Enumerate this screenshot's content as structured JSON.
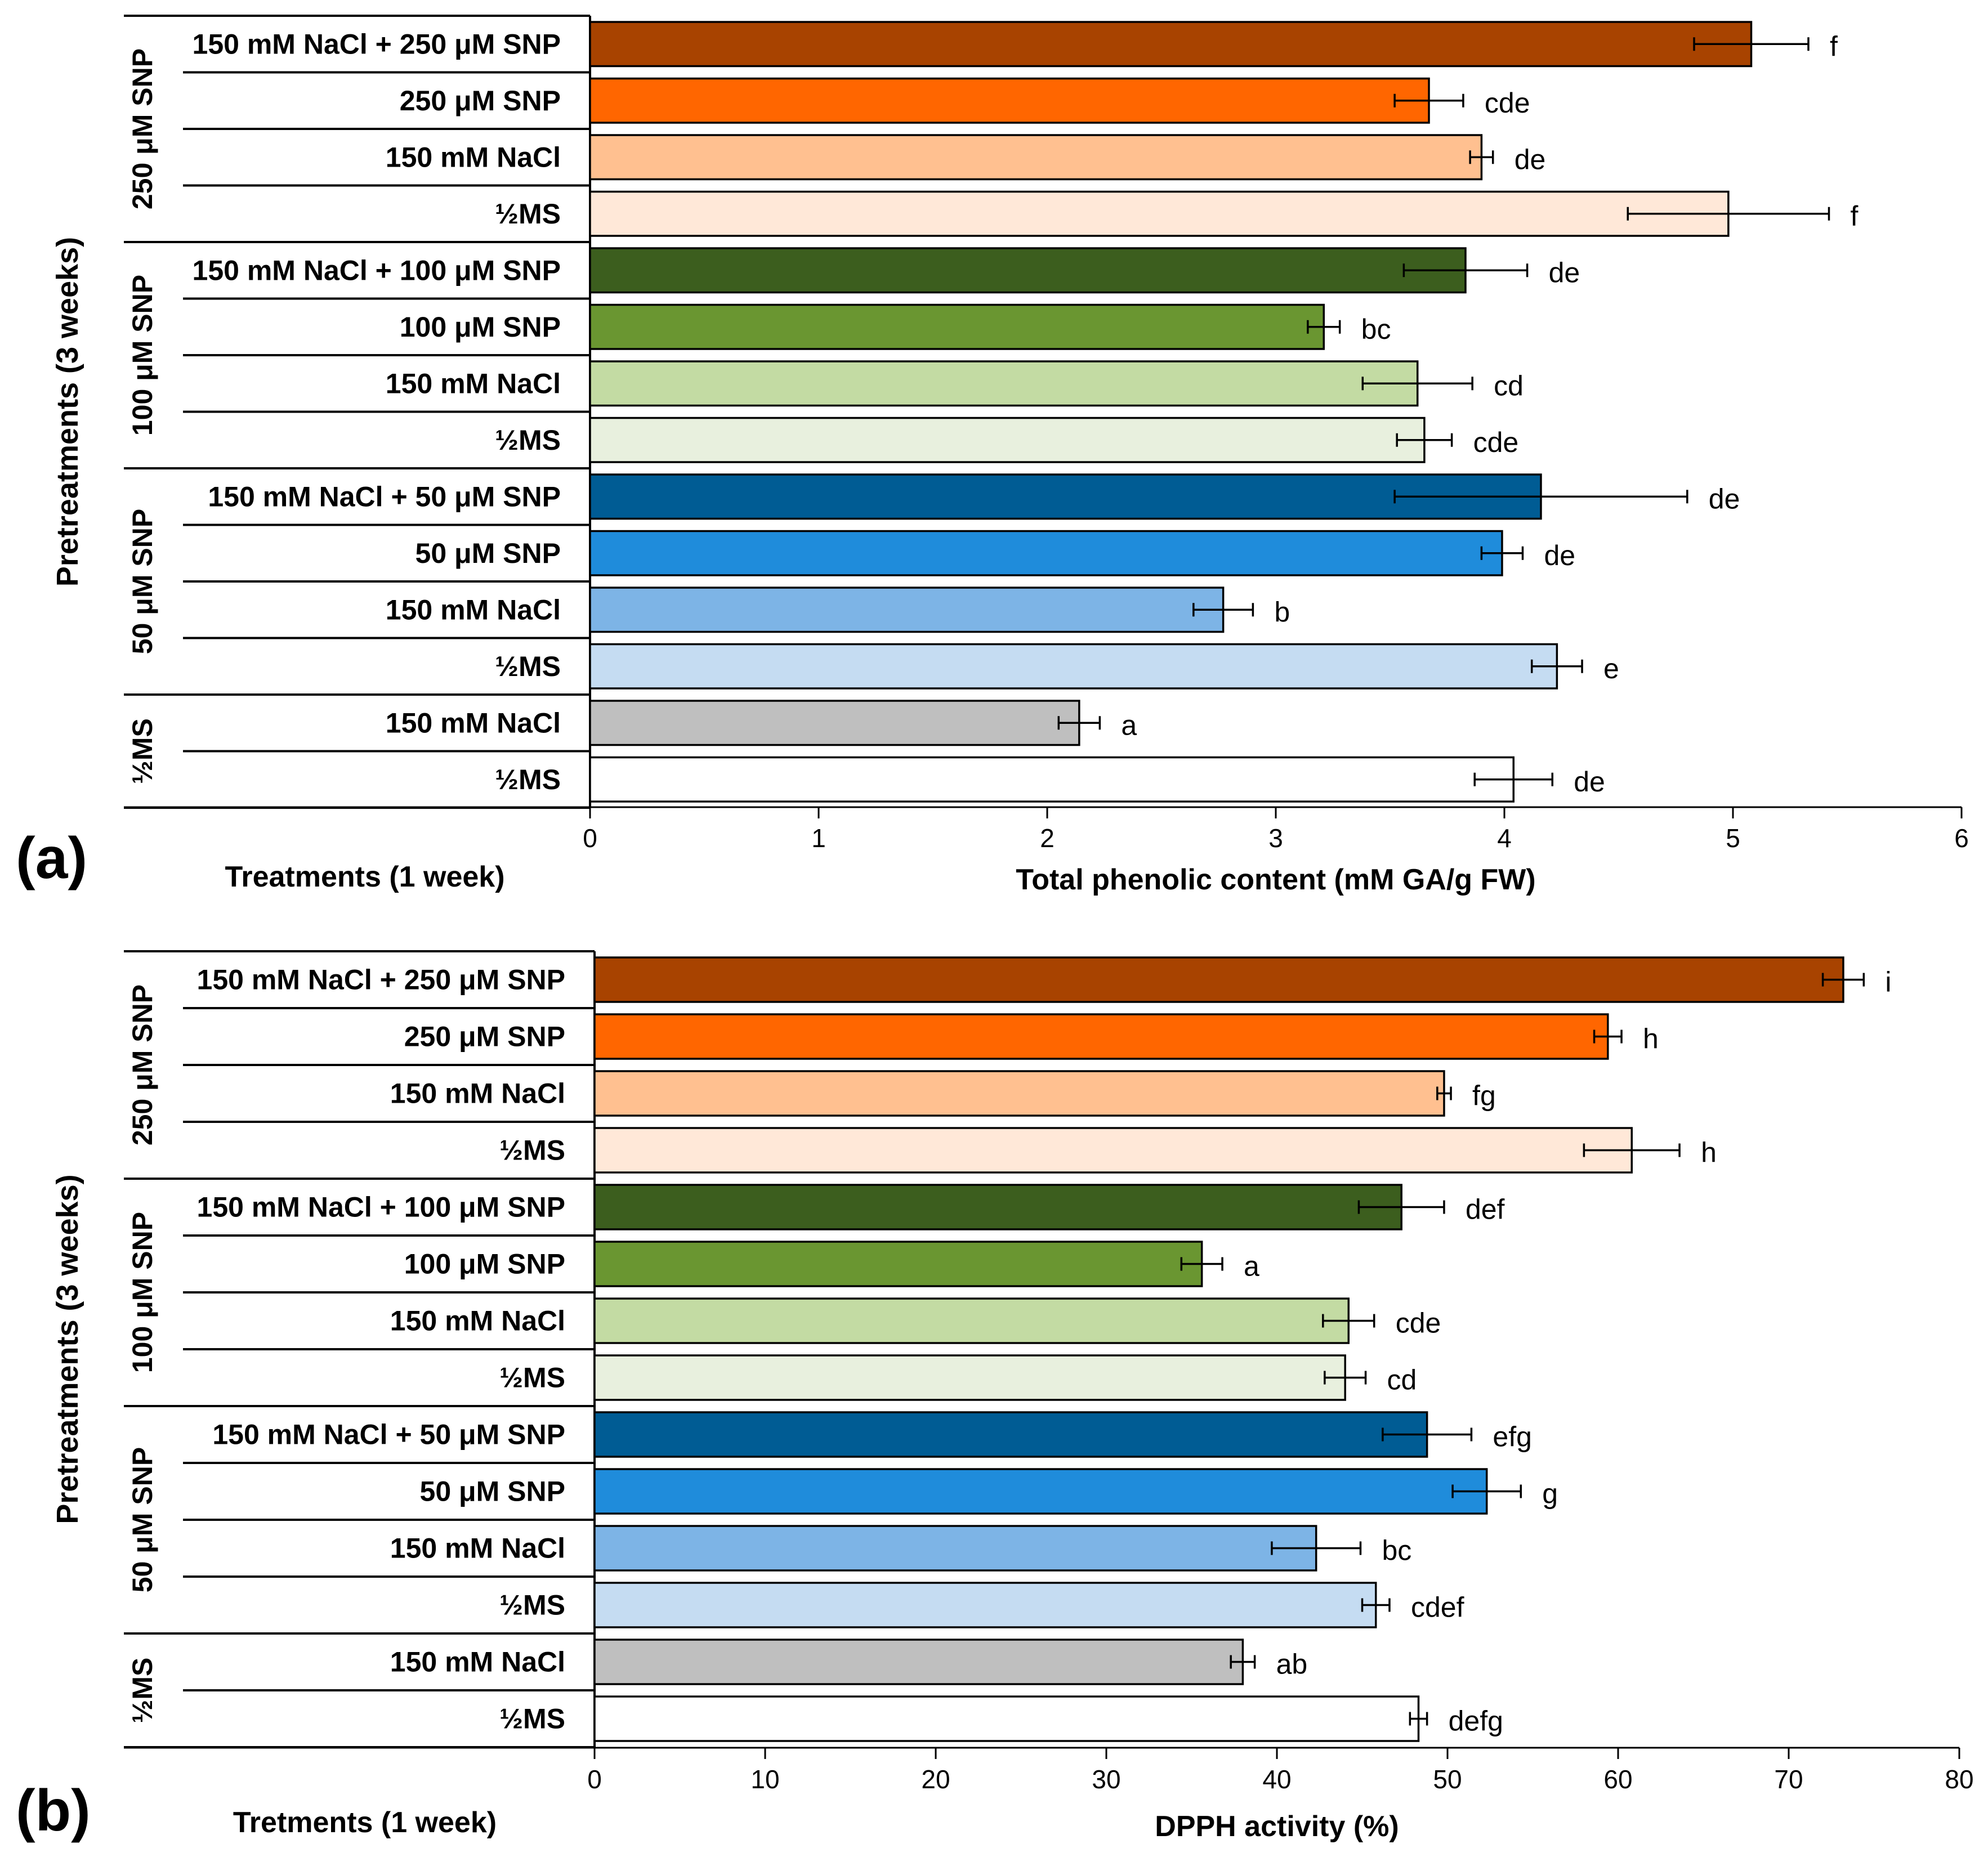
{
  "chart_data": [
    {
      "type": "bar",
      "orientation": "horizontal",
      "panel_label": "(a)",
      "xlabel": "Total phenolic content (mM GA/g FW)",
      "treatment_axis_label": "Treatments  (1 week)",
      "pretreatment_axis_label": "Pretreatments (3 weeks)",
      "xlim": [
        0,
        6
      ],
      "xticks": [
        "0",
        "1",
        "2",
        "3",
        "4",
        "5",
        "6"
      ],
      "groups": [
        {
          "label": "250 μM SNP",
          "bars": [
            {
              "label": "150 mM NaCl + 250 μM SNP",
              "value": 5.08,
              "error": 0.25,
              "sig": "f",
              "color": "#A84300"
            },
            {
              "label": "250 μM SNP",
              "value": 3.67,
              "error": 0.15,
              "sig": "cde",
              "color": "#FF6600"
            },
            {
              "label": "150 mM NaCl",
              "value": 3.9,
              "error": 0.05,
              "sig": "de",
              "color": "#FFC090"
            },
            {
              "label": "½MS",
              "value": 4.98,
              "error": 0.44,
              "sig": "f",
              "color": "#FFE8D8"
            }
          ]
        },
        {
          "label": "100 μM SNP",
          "bars": [
            {
              "label": "150 mM NaCl + 100 μM SNP",
              "value": 3.83,
              "error": 0.27,
              "sig": "de",
              "color": "#3C5E1E"
            },
            {
              "label": "100 μM SNP",
              "value": 3.21,
              "error": 0.07,
              "sig": "bc",
              "color": "#6A9631"
            },
            {
              "label": "150 mM NaCl",
              "value": 3.62,
              "error": 0.24,
              "sig": "cd",
              "color": "#C3DBA3"
            },
            {
              "label": "½MS",
              "value": 3.65,
              "error": 0.12,
              "sig": "cde",
              "color": "#E8F0DE"
            }
          ]
        },
        {
          "label": "50 μM SNP",
          "bars": [
            {
              "label": "150 mM NaCl + 50 μM SNP",
              "value": 4.16,
              "error": 0.64,
              "sig": "de",
              "color": "#005C94"
            },
            {
              "label": "50 μM SNP",
              "value": 3.99,
              "error": 0.09,
              "sig": "de",
              "color": "#1F8CDB"
            },
            {
              "label": "150 mM NaCl",
              "value": 2.77,
              "error": 0.13,
              "sig": "b",
              "color": "#7DB4E6"
            },
            {
              "label": "½MS",
              "value": 4.23,
              "error": 0.11,
              "sig": "e",
              "color": "#C5DCF2"
            }
          ]
        },
        {
          "label": "½MS",
          "bars": [
            {
              "label": "150 mM NaCl",
              "value": 2.14,
              "error": 0.09,
              "sig": "a",
              "color": "#BFBFBF"
            },
            {
              "label": "½MS",
              "value": 4.04,
              "error": 0.17,
              "sig": "de",
              "color": "#FFFFFF"
            }
          ]
        }
      ]
    },
    {
      "type": "bar",
      "orientation": "horizontal",
      "panel_label": "(b)",
      "xlabel": "DPPH activity (%)",
      "treatment_axis_label": "Tretments (1 week)",
      "pretreatment_axis_label": "Pretreatments (3 weeks)",
      "xlim": [
        0,
        80
      ],
      "xticks": [
        "0",
        "10",
        "20",
        "30",
        "40",
        "50",
        "60",
        "70",
        "80"
      ],
      "groups": [
        {
          "label": "250 μM SNP",
          "bars": [
            {
              "label": "150 mM NaCl + 250 μM SNP",
              "value": 73.2,
              "error": 1.2,
              "sig": "i",
              "color": "#A84300"
            },
            {
              "label": "250 μM SNP",
              "value": 59.4,
              "error": 0.8,
              "sig": "h",
              "color": "#FF6600"
            },
            {
              "label": "150 mM NaCl",
              "value": 49.8,
              "error": 0.4,
              "sig": "fg",
              "color": "#FFC090"
            },
            {
              "label": "½MS",
              "value": 60.8,
              "error": 2.8,
              "sig": "h",
              "color": "#FFE8D8"
            }
          ]
        },
        {
          "label": "100 μM SNP",
          "bars": [
            {
              "label": "150 mM NaCl + 100 μM SNP",
              "value": 47.3,
              "error": 2.5,
              "sig": "def",
              "color": "#3C5E1E"
            },
            {
              "label": "100 μM SNP",
              "value": 35.6,
              "error": 1.2,
              "sig": "a",
              "color": "#6A9631"
            },
            {
              "label": "150 mM NaCl",
              "value": 44.2,
              "error": 1.5,
              "sig": "cde",
              "color": "#C3DBA3"
            },
            {
              "label": "½MS",
              "value": 44.0,
              "error": 1.2,
              "sig": "cd",
              "color": "#E8F0DE"
            }
          ]
        },
        {
          "label": "50 μM SNP",
          "bars": [
            {
              "label": "150 mM NaCl + 50 μM SNP",
              "value": 48.8,
              "error": 2.6,
              "sig": "efg",
              "color": "#005C94"
            },
            {
              "label": "50 μM SNP",
              "value": 52.3,
              "error": 2.0,
              "sig": "g",
              "color": "#1F8CDB"
            },
            {
              "label": "150 mM NaCl",
              "value": 42.3,
              "error": 2.6,
              "sig": "bc",
              "color": "#7DB4E6"
            },
            {
              "label": "½MS",
              "value": 45.8,
              "error": 0.8,
              "sig": "cdef",
              "color": "#C5DCF2"
            }
          ]
        },
        {
          "label": "½MS",
          "bars": [
            {
              "label": "150 mM NaCl",
              "value": 38.0,
              "error": 0.7,
              "sig": "ab",
              "color": "#BFBFBF"
            },
            {
              "label": "½MS",
              "value": 48.3,
              "error": 0.5,
              "sig": "defg",
              "color": "#FFFFFF"
            }
          ]
        }
      ]
    }
  ]
}
